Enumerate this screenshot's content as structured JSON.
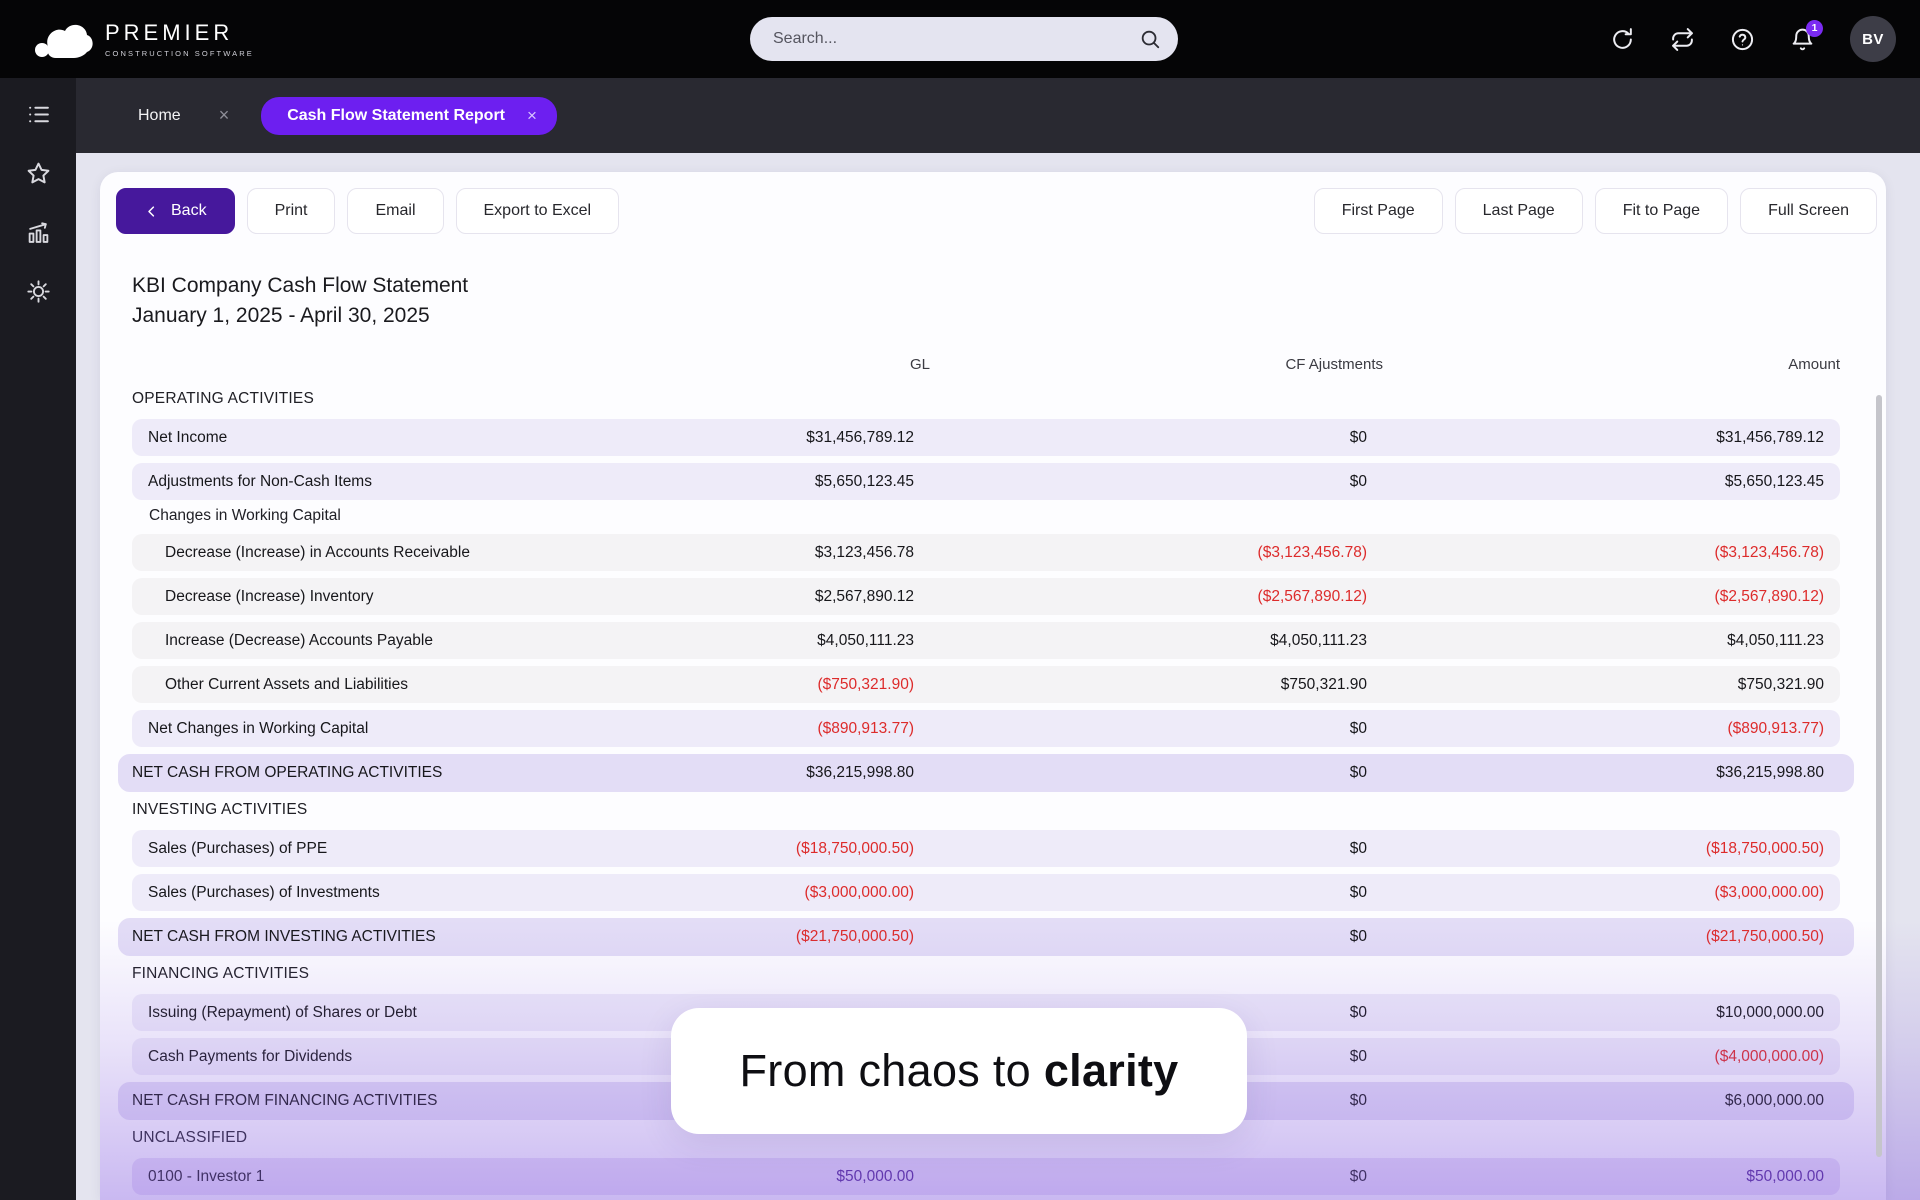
{
  "topbar": {
    "logo": {
      "title": "PREMIER",
      "subtitle": "CONSTRUCTION SOFTWARE"
    },
    "search": {
      "placeholder": "Search..."
    },
    "icons": [
      "refresh-icon",
      "sync-icon",
      "help-icon",
      "notifications-icon"
    ],
    "notification_count": "1",
    "avatar": "BV"
  },
  "sidebar": {
    "icons": [
      "list-icon",
      "star-icon",
      "report-chart-icon",
      "gear-icon"
    ]
  },
  "tabs": [
    {
      "label": "Home",
      "active": false
    },
    {
      "label": "Cash Flow Statement Report",
      "active": true
    }
  ],
  "toolbar": {
    "left": [
      {
        "label": "Back",
        "primary": true,
        "icon": "chevron-left-icon"
      },
      {
        "label": "Print"
      },
      {
        "label": "Email"
      },
      {
        "label": "Export to Excel"
      }
    ],
    "right": [
      {
        "label": "First Page"
      },
      {
        "label": "Last Page"
      },
      {
        "label": "Fit to Page"
      },
      {
        "label": "Full Screen"
      }
    ]
  },
  "report": {
    "title": "KBI Company Cash Flow Statement",
    "date_range": "January 1, 2025 - April 30, 2025",
    "columns": [
      "GL",
      "CF Ajustments",
      "Amount"
    ],
    "rows": [
      {
        "type": "section",
        "label": "OPERATING ACTIVITIES"
      },
      {
        "type": "row",
        "label": "Net Income",
        "gl": "$31,456,789.12",
        "cf": "$0",
        "amount": "$31,456,789.12"
      },
      {
        "type": "row",
        "label": "Adjustments for Non-Cash Items",
        "gl": "$5,650,123.45",
        "cf": "$0",
        "amount": "$5,650,123.45"
      },
      {
        "type": "subheader",
        "label": "Changes in Working Capital"
      },
      {
        "type": "subrow",
        "label": "Decrease (Increase) in Accounts Receivable",
        "gl": "$3,123,456.78",
        "cf": "($3,123,456.78)",
        "amount": "($3,123,456.78)"
      },
      {
        "type": "subrow",
        "label": "Decrease (Increase) Inventory",
        "gl": "$2,567,890.12",
        "cf": "($2,567,890.12)",
        "amount": "($2,567,890.12)"
      },
      {
        "type": "subrow",
        "label": "Increase (Decrease) Accounts Payable",
        "gl": "$4,050,111.23",
        "cf": "$4,050,111.23",
        "amount": "$4,050,111.23"
      },
      {
        "type": "subrow",
        "label": "Other Current Assets and Liabilities",
        "gl": "($750,321.90)",
        "cf": "$750,321.90",
        "amount": "$750,321.90"
      },
      {
        "type": "row",
        "label": "Net Changes in Working Capital",
        "gl": "($890,913.77)",
        "cf": "$0",
        "amount": "($890,913.77)"
      },
      {
        "type": "total",
        "label": "NET CASH FROM OPERATING ACTIVITIES",
        "gl": "$36,215,998.80",
        "cf": "$0",
        "amount": "$36,215,998.80"
      },
      {
        "type": "section",
        "label": "INVESTING ACTIVITIES"
      },
      {
        "type": "row",
        "label": "Sales (Purchases) of PPE",
        "gl": "($18,750,000.50)",
        "cf": "$0",
        "amount": "($18,750,000.50)"
      },
      {
        "type": "row",
        "label": "Sales (Purchases) of Investments",
        "gl": "($3,000,000.00)",
        "cf": "$0",
        "amount": "($3,000,000.00)"
      },
      {
        "type": "total",
        "label": "NET CASH FROM INVESTING ACTIVITIES",
        "gl": "($21,750,000.50)",
        "cf": "$0",
        "amount": "($21,750,000.50)"
      },
      {
        "type": "section",
        "label": "FINANCING ACTIVITIES"
      },
      {
        "type": "row",
        "label": "Issuing (Repayment) of Shares or Debt",
        "gl": "",
        "cf": "$0",
        "amount": "$10,000,000.00"
      },
      {
        "type": "row",
        "label": "Cash Payments for Dividends",
        "gl": "",
        "cf": "$0",
        "amount": "($4,000,000.00)"
      },
      {
        "type": "total",
        "label": "NET CASH FROM FINANCING ACTIVITIES",
        "gl": "",
        "cf": "$0",
        "amount": "$6,000,000.00"
      },
      {
        "type": "section",
        "label": "UNCLASSIFIED"
      },
      {
        "type": "row",
        "accent": true,
        "label": "0100 - Investor 1",
        "gl": "$50,000.00",
        "cf": "$0",
        "amount": "$50,000.00"
      }
    ]
  },
  "overlay": {
    "text_regular": "From chaos to ",
    "text_bold": "clarity"
  },
  "colors": {
    "accent_purple": "#6d1ff0",
    "back_button_purple": "#46189c",
    "negative_red": "#dd2b2b",
    "link_purple": "#4e2492",
    "topbar_black": "#050506",
    "page_background": "#e4e4ef"
  }
}
